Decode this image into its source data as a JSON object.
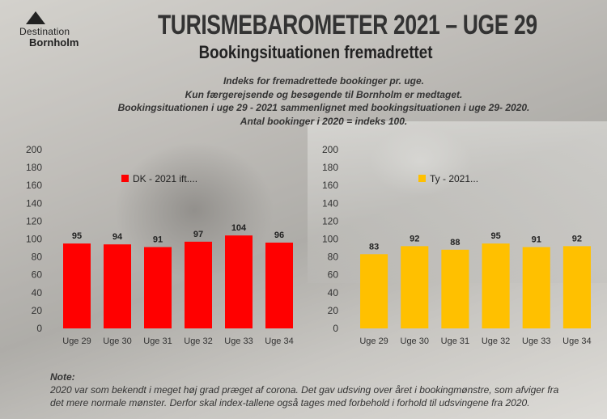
{
  "header": {
    "logo_line1": "Destination",
    "logo_line2": "Bornholm",
    "title": "TURISMEBAROMETER 2021 – UGE 29",
    "subtitle": "Bookingsituationen fremadrettet"
  },
  "description": [
    "Indeks for fremadrettede bookinger pr. uge.",
    "Kun færgerejsende og besøgende til Bornholm er medtaget.",
    "Bookingsituationen i uge 29 - 2021 sammenlignet med bookingsituationen i uge 29- 2020.",
    "Antal bookinger i 2020 = indeks 100."
  ],
  "note": {
    "title": "Note:",
    "lines": [
      "2020 var som bekendt i meget høj grad præget af corona. Det gav udsving over året i bookingmønstre, som afviger fra",
      "det mere normale mønster. Derfor skal index-tallene også tages med forbehold i forhold til udsvingene fra 2020."
    ]
  },
  "chart_data": [
    {
      "type": "bar",
      "categories": [
        "Uge 29",
        "Uge 30",
        "Uge 31",
        "Uge 32",
        "Uge 33",
        "Uge 34"
      ],
      "series": [
        {
          "name": "DK - 2021 ift....",
          "values": [
            95,
            94,
            91,
            97,
            104,
            96
          ],
          "color": "#ff0000"
        }
      ],
      "ylim": [
        0,
        200
      ],
      "yticks": [
        "0",
        "20",
        "40",
        "60",
        "80",
        "100",
        "120",
        "140",
        "160",
        "180",
        "200"
      ],
      "legend": "top-left",
      "grid": false
    },
    {
      "type": "bar",
      "categories": [
        "Uge 29",
        "Uge 30",
        "Uge 31",
        "Uge 32",
        "Uge 33",
        "Uge 34"
      ],
      "series": [
        {
          "name": "Ty - 2021...",
          "values": [
            83,
            92,
            88,
            95,
            91,
            92
          ],
          "color": "#ffc000"
        }
      ],
      "ylim": [
        0,
        200
      ],
      "yticks": [
        "0",
        "20",
        "40",
        "60",
        "80",
        "100",
        "120",
        "140",
        "160",
        "180",
        "200"
      ],
      "legend": "top-left",
      "grid": false
    }
  ]
}
